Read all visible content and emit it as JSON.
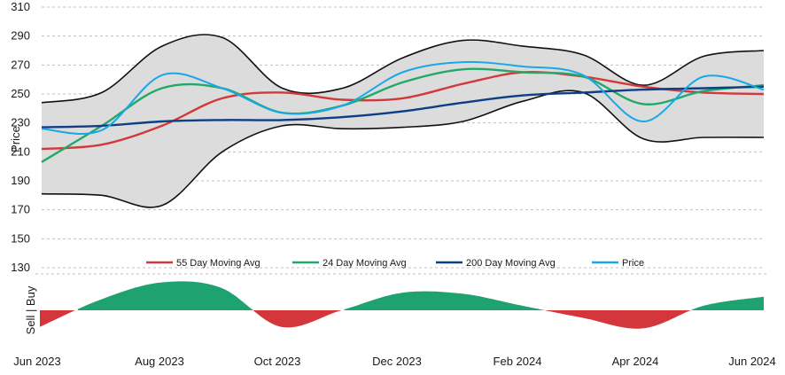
{
  "chart_data": [
    {
      "type": "line",
      "title": "",
      "ylabel": "Price",
      "ylim": [
        130,
        310
      ],
      "yticks": [
        130,
        150,
        170,
        190,
        210,
        230,
        250,
        270,
        290,
        310
      ],
      "xlabels": [
        "Jun 2023",
        "Aug 2023",
        "Oct 2023",
        "Dec 2023",
        "Feb 2024",
        "Apr 2024",
        "Jun 2024"
      ],
      "grid": true,
      "legend_position": "bottom",
      "x": [
        "2023-06",
        "2023-07",
        "2023-08",
        "2023-09",
        "2023-10",
        "2023-11",
        "2023-12",
        "2024-01",
        "2024-02",
        "2024-03",
        "2024-04",
        "2024-05",
        "2024-06"
      ],
      "bands": [
        {
          "name": "",
          "upper": [
            244,
            251,
            283,
            289,
            254,
            254,
            275,
            287,
            283,
            277,
            256,
            276,
            280
          ],
          "lower": [
            181,
            180,
            173,
            210,
            228,
            226,
            227,
            231,
            245,
            251,
            219,
            220,
            220
          ],
          "fill": "#dcdcdc",
          "stroke": "#111111"
        }
      ],
      "series": [
        {
          "name": "55 Day Moving Avg",
          "color": "#d2393a",
          "values": [
            212,
            215,
            228,
            247,
            251,
            246,
            247,
            257,
            265,
            262,
            255,
            251,
            250
          ]
        },
        {
          "name": "24 Day Moving Avg",
          "color": "#22a86a",
          "values": [
            203,
            228,
            254,
            254,
            237,
            242,
            258,
            267,
            265,
            262,
            243,
            252,
            256
          ]
        },
        {
          "name": "200 Day Moving Avg",
          "color": "#0d3e86",
          "values": [
            227,
            228,
            231,
            232,
            232,
            234,
            238,
            244,
            249,
            251,
            253,
            254,
            255
          ]
        },
        {
          "name": "Price",
          "color": "#18a8e8",
          "values": [
            226,
            225,
            263,
            254,
            237,
            242,
            265,
            272,
            269,
            263,
            231,
            262,
            253
          ]
        }
      ]
    },
    {
      "type": "area",
      "ylabel": "Sell | Buy",
      "ylim": [
        -1,
        1
      ],
      "x": [
        "2023-06",
        "2023-07",
        "2023-08",
        "2023-09",
        "2023-10",
        "2023-11",
        "2023-12",
        "2024-01",
        "2024-02",
        "2024-03",
        "2024-04",
        "2024-05",
        "2024-06"
      ],
      "colors": {
        "buy": "#1ea370",
        "sell": "#d3363b"
      },
      "values": [
        -0.55,
        0.35,
        0.92,
        0.75,
        -0.55,
        0.0,
        0.58,
        0.55,
        0.15,
        -0.25,
        -0.6,
        0.15,
        0.45
      ]
    }
  ],
  "legend": [
    {
      "label": "55 Day Moving Avg",
      "color": "#d2393a"
    },
    {
      "label": "24 Day Moving Avg",
      "color": "#22a86a"
    },
    {
      "label": "200 Day Moving Avg",
      "color": "#0d3e86"
    },
    {
      "label": "Price",
      "color": "#18a8e8"
    }
  ]
}
